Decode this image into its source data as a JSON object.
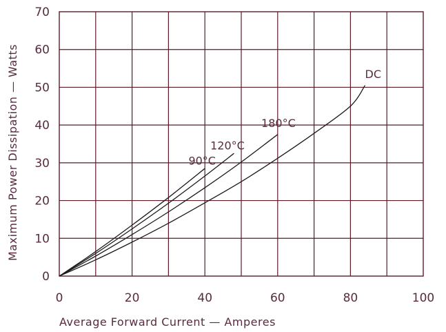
{
  "chart_data": {
    "type": "line",
    "title": "",
    "xlabel": "Average Forward Current — Amperes",
    "ylabel": "Maximum Power Dissipation — Watts",
    "xlim": [
      0,
      100
    ],
    "ylim": [
      0,
      70
    ],
    "xticks": [
      "0",
      "20",
      "40",
      "60",
      "80",
      "100"
    ],
    "yticks": [
      "0",
      "10",
      "20",
      "30",
      "40",
      "50",
      "60",
      "70"
    ],
    "x_grid_step": 10,
    "y_grid_step": 10,
    "grid": true,
    "series": [
      {
        "name": "90°C",
        "x": [
          0,
          10,
          20,
          30,
          40
        ],
        "y": [
          0,
          6.5,
          13.5,
          20.8,
          28.5
        ]
      },
      {
        "name": "120°C",
        "x": [
          0,
          10,
          20,
          30,
          40,
          48
        ],
        "y": [
          0,
          6.0,
          12.5,
          19.3,
          26.5,
          32.5
        ]
      },
      {
        "name": "180°C",
        "x": [
          0,
          10,
          20,
          30,
          40,
          50,
          60
        ],
        "y": [
          0,
          5.3,
          11.0,
          17.0,
          23.4,
          30.2,
          37.5
        ]
      },
      {
        "name": "DC",
        "x": [
          0,
          10,
          20,
          30,
          40,
          50,
          60,
          70,
          80,
          84
        ],
        "y": [
          0,
          4.3,
          9.0,
          14.0,
          19.4,
          25.0,
          31.2,
          37.8,
          45.0,
          50.5
        ]
      }
    ],
    "curve_labels": [
      {
        "series": "90°C",
        "text": "90°C",
        "x": 35.5,
        "y": 29.5
      },
      {
        "series": "120°C",
        "text": "120°C",
        "x": 41.5,
        "y": 33.5
      },
      {
        "series": "180°C",
        "text": "180°C",
        "x": 55.5,
        "y": 39.5
      },
      {
        "series": "DC",
        "text": "DC",
        "x": 84.0,
        "y": 52.5
      }
    ]
  }
}
